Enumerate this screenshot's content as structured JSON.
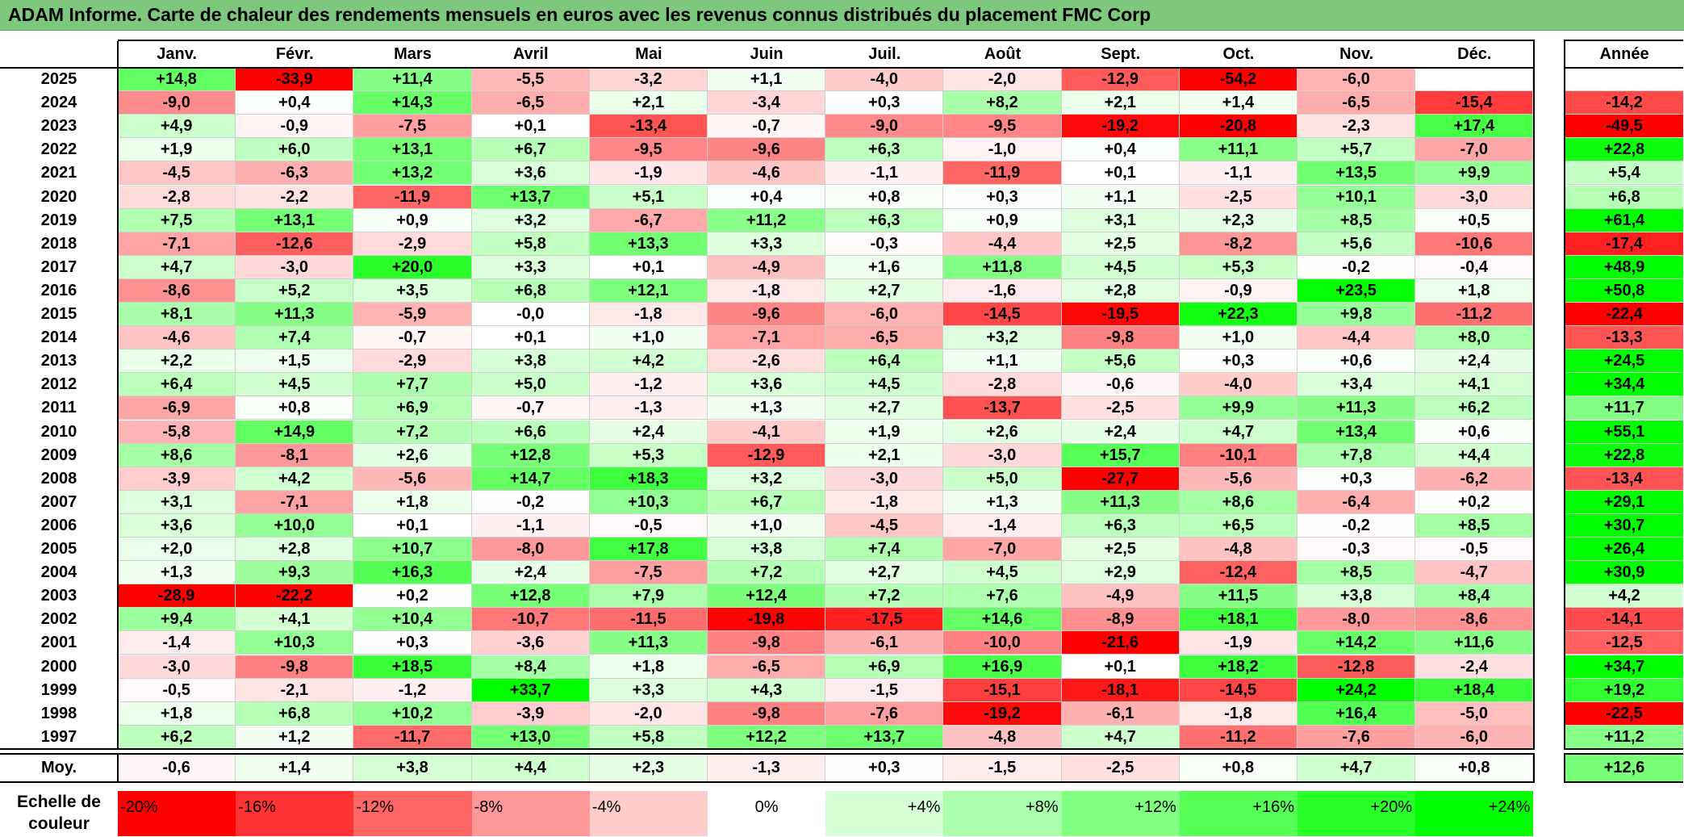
{
  "title": "ADAM Informe. Carte de chaleur des rendements mensuels en euros avec les revenus connus distribués du placement FMC Corp",
  "chart_data": {
    "type": "heatmap",
    "title": "ADAM Informe. Carte de chaleur des rendements mensuels en euros avec les revenus connus distribués du placement FMC Corp",
    "columns": [
      "Janv.",
      "Févr.",
      "Mars",
      "Avril",
      "Mai",
      "Juin",
      "Juil.",
      "Août",
      "Sept.",
      "Oct.",
      "Nov.",
      "Déc."
    ],
    "annual_header": "Année",
    "rows": [
      {
        "year": "2025",
        "values": [
          "+14,8",
          "-33,9",
          "+11,4",
          "-5,5",
          "-3,2",
          "+1,1",
          "-4,0",
          "-2,0",
          "-12,9",
          "-54,2",
          "-6,0",
          ""
        ],
        "annual": ""
      },
      {
        "year": "2024",
        "values": [
          "-9,0",
          "+0,4",
          "+14,3",
          "-6,5",
          "+2,1",
          "-3,4",
          "+0,3",
          "+8,2",
          "+2,1",
          "+1,4",
          "-6,5",
          "-15,4"
        ],
        "annual": "-14,2"
      },
      {
        "year": "2023",
        "values": [
          "+4,9",
          "-0,9",
          "-7,5",
          "+0,1",
          "-13,4",
          "-0,7",
          "-9,0",
          "-9,5",
          "-19,2",
          "-20,8",
          "-2,3",
          "+17,4"
        ],
        "annual": "-49,5"
      },
      {
        "year": "2022",
        "values": [
          "+1,9",
          "+6,0",
          "+13,1",
          "+6,7",
          "-9,5",
          "-9,6",
          "+6,3",
          "-1,0",
          "+0,4",
          "+11,1",
          "+5,7",
          "-7,0"
        ],
        "annual": "+22,8"
      },
      {
        "year": "2021",
        "values": [
          "-4,5",
          "-6,3",
          "+13,2",
          "+3,6",
          "-1,9",
          "-4,6",
          "-1,1",
          "-11,9",
          "+0,1",
          "-1,1",
          "+13,5",
          "+9,9"
        ],
        "annual": "+5,4"
      },
      {
        "year": "2020",
        "values": [
          "-2,8",
          "-2,2",
          "-11,9",
          "+13,7",
          "+5,1",
          "+0,4",
          "+0,8",
          "+0,3",
          "+1,1",
          "-2,5",
          "+10,1",
          "-3,0"
        ],
        "annual": "+6,8"
      },
      {
        "year": "2019",
        "values": [
          "+7,5",
          "+13,1",
          "+0,9",
          "+3,2",
          "-6,7",
          "+11,2",
          "+6,3",
          "+0,9",
          "+3,1",
          "+2,3",
          "+8,5",
          "+0,5"
        ],
        "annual": "+61,4"
      },
      {
        "year": "2018",
        "values": [
          "-7,1",
          "-12,6",
          "-2,9",
          "+5,8",
          "+13,3",
          "+3,3",
          "-0,3",
          "-4,4",
          "+2,5",
          "-8,2",
          "+5,6",
          "-10,6"
        ],
        "annual": "-17,4"
      },
      {
        "year": "2017",
        "values": [
          "+4,7",
          "-3,0",
          "+20,0",
          "+3,3",
          "+0,1",
          "-4,9",
          "+1,6",
          "+11,8",
          "+4,5",
          "+5,3",
          "-0,2",
          "-0,4"
        ],
        "annual": "+48,9"
      },
      {
        "year": "2016",
        "values": [
          "-8,6",
          "+5,2",
          "+3,5",
          "+6,8",
          "+12,1",
          "-1,8",
          "+2,7",
          "-1,6",
          "+2,8",
          "-0,9",
          "+23,5",
          "+1,8"
        ],
        "annual": "+50,8"
      },
      {
        "year": "2015",
        "values": [
          "+8,1",
          "+11,3",
          "-5,9",
          "-0,0",
          "-1,8",
          "-9,6",
          "-6,0",
          "-14,5",
          "-19,5",
          "+22,3",
          "+9,8",
          "-11,2"
        ],
        "annual": "-22,4"
      },
      {
        "year": "2014",
        "values": [
          "-4,6",
          "+7,4",
          "-0,7",
          "+0,1",
          "+1,0",
          "-7,1",
          "-6,5",
          "+3,2",
          "-9,8",
          "+1,0",
          "-4,4",
          "+8,0"
        ],
        "annual": "-13,3"
      },
      {
        "year": "2013",
        "values": [
          "+2,2",
          "+1,5",
          "-2,9",
          "+3,8",
          "+4,2",
          "-2,6",
          "+6,4",
          "+1,1",
          "+5,6",
          "+0,3",
          "+0,6",
          "+2,4"
        ],
        "annual": "+24,5"
      },
      {
        "year": "2012",
        "values": [
          "+6,4",
          "+4,5",
          "+7,7",
          "+5,0",
          "-1,2",
          "+3,6",
          "+4,5",
          "-2,8",
          "-0,6",
          "-4,0",
          "+3,4",
          "+4,1"
        ],
        "annual": "+34,4"
      },
      {
        "year": "2011",
        "values": [
          "-6,9",
          "+0,8",
          "+6,9",
          "-0,7",
          "-1,3",
          "+1,3",
          "+2,7",
          "-13,7",
          "-2,5",
          "+9,9",
          "+11,3",
          "+6,2"
        ],
        "annual": "+11,7"
      },
      {
        "year": "2010",
        "values": [
          "-5,8",
          "+14,9",
          "+7,2",
          "+6,6",
          "+2,4",
          "-4,1",
          "+1,9",
          "+2,6",
          "+2,4",
          "+4,7",
          "+13,4",
          "+0,6"
        ],
        "annual": "+55,1"
      },
      {
        "year": "2009",
        "values": [
          "+8,6",
          "-8,1",
          "+2,6",
          "+12,8",
          "+5,3",
          "-12,9",
          "+2,1",
          "-3,0",
          "+15,7",
          "-10,1",
          "+7,8",
          "+4,4"
        ],
        "annual": "+22,8"
      },
      {
        "year": "2008",
        "values": [
          "-3,9",
          "+4,2",
          "-5,6",
          "+14,7",
          "+18,3",
          "+3,2",
          "-3,0",
          "+5,0",
          "-27,7",
          "-5,6",
          "+0,3",
          "-6,2"
        ],
        "annual": "-13,4"
      },
      {
        "year": "2007",
        "values": [
          "+3,1",
          "-7,1",
          "+1,8",
          "-0,2",
          "+10,3",
          "+6,7",
          "-1,8",
          "+1,3",
          "+11,3",
          "+8,6",
          "-6,4",
          "+0,2"
        ],
        "annual": "+29,1"
      },
      {
        "year": "2006",
        "values": [
          "+3,6",
          "+10,0",
          "+0,1",
          "-1,1",
          "-0,5",
          "+1,0",
          "-4,5",
          "-1,4",
          "+6,3",
          "+6,5",
          "-0,2",
          "+8,5"
        ],
        "annual": "+30,7"
      },
      {
        "year": "2005",
        "values": [
          "+2,0",
          "+2,8",
          "+10,7",
          "-8,0",
          "+17,8",
          "+3,8",
          "+7,4",
          "-7,0",
          "+2,5",
          "-4,8",
          "-0,3",
          "-0,5"
        ],
        "annual": "+26,4"
      },
      {
        "year": "2004",
        "values": [
          "+1,3",
          "+9,3",
          "+16,3",
          "+2,4",
          "-7,5",
          "+7,2",
          "+2,7",
          "+4,5",
          "+2,9",
          "-12,4",
          "+8,5",
          "-4,7"
        ],
        "annual": "+30,9"
      },
      {
        "year": "2003",
        "values": [
          "-28,9",
          "-22,2",
          "+0,2",
          "+12,8",
          "+7,9",
          "+12,4",
          "+7,2",
          "+7,6",
          "-4,9",
          "+11,5",
          "+3,8",
          "+8,4"
        ],
        "annual": "+4,2"
      },
      {
        "year": "2002",
        "values": [
          "+9,4",
          "+4,1",
          "+10,4",
          "-10,7",
          "-11,5",
          "-19,8",
          "-17,5",
          "+14,6",
          "-8,9",
          "+18,1",
          "-8,0",
          "-8,6"
        ],
        "annual": "-14,1"
      },
      {
        "year": "2001",
        "values": [
          "-1,4",
          "+10,3",
          "+0,3",
          "-3,6",
          "+11,3",
          "-9,8",
          "-6,1",
          "-10,0",
          "-21,6",
          "-1,9",
          "+14,2",
          "+11,6"
        ],
        "annual": "-12,5"
      },
      {
        "year": "2000",
        "values": [
          "-3,0",
          "-9,8",
          "+18,5",
          "+8,4",
          "+1,8",
          "-6,5",
          "+6,9",
          "+16,9",
          "+0,1",
          "+18,2",
          "-12,8",
          "-2,4"
        ],
        "annual": "+34,7"
      },
      {
        "year": "1999",
        "values": [
          "-0,5",
          "-2,1",
          "-1,2",
          "+33,7",
          "+3,3",
          "+4,3",
          "-1,5",
          "-15,1",
          "-18,1",
          "-14,5",
          "+24,2",
          "+18,4"
        ],
        "annual": "+19,2"
      },
      {
        "year": "1998",
        "values": [
          "+1,8",
          "+6,8",
          "+10,2",
          "-3,9",
          "-2,0",
          "-9,8",
          "-7,6",
          "-19,2",
          "-6,1",
          "-1,8",
          "+16,4",
          "-5,0"
        ],
        "annual": "-22,5"
      },
      {
        "year": "1997",
        "values": [
          "+6,2",
          "+1,2",
          "-11,7",
          "+13,0",
          "+5,8",
          "+12,2",
          "+13,7",
          "-4,8",
          "+4,7",
          "-11,2",
          "-7,6",
          "-6,0"
        ],
        "annual": "+11,2"
      }
    ],
    "average": {
      "label": "Moy.",
      "values": [
        "-0,6",
        "+1,4",
        "+3,8",
        "+4,4",
        "+2,3",
        "-1,3",
        "+0,3",
        "-1,5",
        "-2,5",
        "+0,8",
        "+4,7",
        "+0,8"
      ],
      "annual": "+12,6"
    },
    "color_scale": {
      "label": "Echelle de couleur",
      "stops": [
        "-20%",
        "-16%",
        "-12%",
        "-8%",
        "-4%",
        "0%",
        "+4%",
        "+8%",
        "+12%",
        "+16%",
        "+20%",
        "+24%"
      ],
      "stop_values": [
        -20,
        -16,
        -12,
        -8,
        -4,
        0,
        4,
        8,
        12,
        16,
        20,
        24
      ],
      "colors": {
        "negative": "#ff0000",
        "zero": "#ffffff",
        "positive": "#00ff00"
      }
    }
  }
}
